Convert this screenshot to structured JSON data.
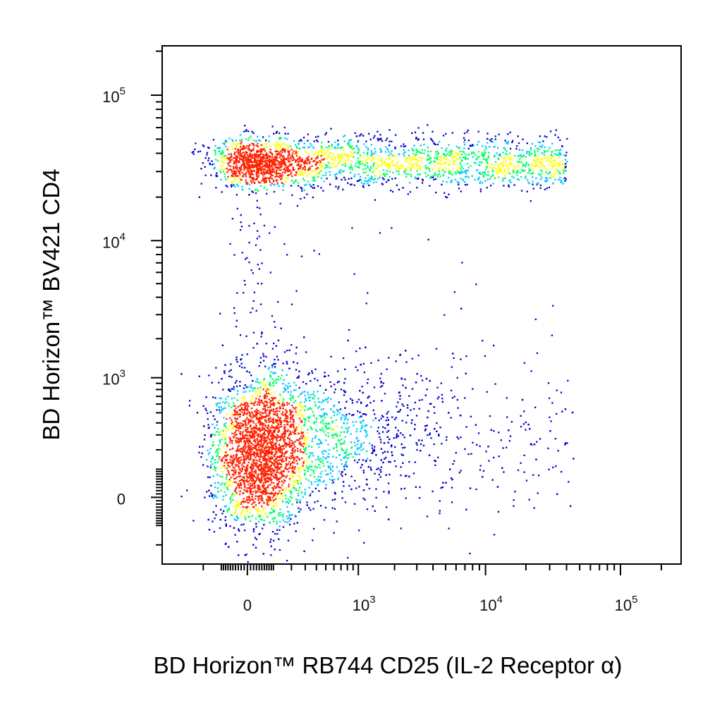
{
  "chart_data": {
    "type": "scatter",
    "subtype": "flow-cytometry pseudocolor density dot plot",
    "xlabel": "BD Horizon™ RB744 CD25 (IL-2 Receptor α)",
    "ylabel": "BD Horizon™ BV421 CD4",
    "x_scale": "biexponential",
    "y_scale": "biexponential",
    "xlim": [
      -300,
      100000
    ],
    "ylim": [
      -300,
      100000
    ],
    "x_ticks": [
      {
        "value": 0,
        "base": "0",
        "exp": ""
      },
      {
        "value": 1000,
        "base": "10",
        "exp": "3"
      },
      {
        "value": 10000,
        "base": "10",
        "exp": "4"
      },
      {
        "value": 100000,
        "base": "10",
        "exp": "5"
      }
    ],
    "y_ticks": [
      {
        "value": 0,
        "base": "0",
        "exp": ""
      },
      {
        "value": 1000,
        "base": "10",
        "exp": "3"
      },
      {
        "value": 10000,
        "base": "10",
        "exp": "4"
      },
      {
        "value": 100000,
        "base": "10",
        "exp": "5"
      }
    ],
    "grid": false,
    "legend": "none",
    "density_colors": [
      "#0000cc",
      "#00c8ff",
      "#00ff66",
      "#ffff00",
      "#ff2200"
    ],
    "populations": [
      {
        "id": "cd4-positive",
        "x_center": 800,
        "x_min": -200,
        "x_max": 40000,
        "y_center": 35000,
        "y_min": 20000,
        "y_max": 70000,
        "relative_density": 0.45
      },
      {
        "id": "cd4-negative",
        "x_center": 0,
        "x_min": -300,
        "x_max": 20000,
        "y_center": 50,
        "y_min": -300,
        "y_max": 800,
        "relative_density": 1.0
      }
    ]
  }
}
